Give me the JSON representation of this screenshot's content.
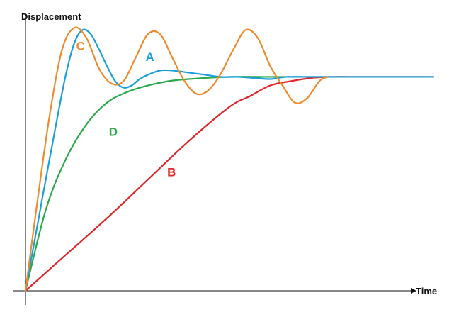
{
  "chart_data": {
    "type": "line",
    "title": "",
    "xlabel": "Time",
    "ylabel": "Displacement",
    "xlim": [
      0,
      100
    ],
    "ylim": [
      0,
      1.3
    ],
    "grid": false,
    "legend": "none",
    "reference_line": {
      "y": 1.0,
      "color": "#b4b4b4"
    },
    "series": [
      {
        "name": "A",
        "color": "#1a9fdb",
        "label_at": [
          30.5,
          1.09
        ],
        "points": [
          [
            0,
            0
          ],
          [
            4,
            0.42
          ],
          [
            8,
            0.83
          ],
          [
            10,
            1.02
          ],
          [
            12,
            1.16
          ],
          [
            14,
            1.22
          ],
          [
            16,
            1.2
          ],
          [
            18,
            1.13
          ],
          [
            20,
            1.05
          ],
          [
            22,
            0.98
          ],
          [
            24,
            0.95
          ],
          [
            26,
            0.96
          ],
          [
            28,
            0.99
          ],
          [
            30,
            1.01
          ],
          [
            33,
            1.03
          ],
          [
            36,
            1.03
          ],
          [
            40,
            1.02
          ],
          [
            44,
            1.01
          ],
          [
            48,
            1.0
          ],
          [
            52,
            1.0
          ],
          [
            56,
            0.995
          ],
          [
            60,
            0.99
          ],
          [
            64,
            1.0
          ],
          [
            70,
            1.0
          ],
          [
            80,
            1.0
          ],
          [
            90,
            1.0
          ],
          [
            100,
            1.0
          ]
        ]
      },
      {
        "name": "B",
        "color": "#e0262a",
        "label_at": [
          35.8,
          0.55
        ],
        "points": [
          [
            0,
            0
          ],
          [
            10,
            0.17
          ],
          [
            20,
            0.34
          ],
          [
            30,
            0.52
          ],
          [
            40,
            0.7
          ],
          [
            50,
            0.86
          ],
          [
            55,
            0.91
          ],
          [
            60,
            0.96
          ],
          [
            65,
            0.98
          ],
          [
            70,
            0.995
          ],
          [
            75,
            1.0
          ],
          [
            80,
            1.0
          ],
          [
            90,
            1.0
          ],
          [
            100,
            1.0
          ]
        ]
      },
      {
        "name": "C",
        "color": "#f08a2d",
        "label_at": [
          13.5,
          1.14
        ],
        "points": [
          [
            0,
            0
          ],
          [
            3,
            0.43
          ],
          [
            6,
            0.83
          ],
          [
            9,
            1.13
          ],
          [
            12,
            1.23
          ],
          [
            15,
            1.18
          ],
          [
            18,
            1.04
          ],
          [
            21,
            0.97
          ],
          [
            24,
            0.98
          ],
          [
            27,
            1.09
          ],
          [
            30,
            1.2
          ],
          [
            33,
            1.2
          ],
          [
            36,
            1.09
          ],
          [
            39,
            0.98
          ],
          [
            42,
            0.92
          ],
          [
            45,
            0.94
          ],
          [
            48,
            1.02
          ],
          [
            51,
            1.13
          ],
          [
            54,
            1.22
          ],
          [
            57,
            1.18
          ],
          [
            60,
            1.05
          ],
          [
            63,
            0.96
          ],
          [
            66,
            0.88
          ],
          [
            69,
            0.9
          ],
          [
            72,
            0.98
          ],
          [
            74,
            1.0
          ]
        ]
      },
      {
        "name": "D",
        "color": "#2aa84a",
        "label_at": [
          21.5,
          0.74
        ],
        "points": [
          [
            0,
            0
          ],
          [
            5,
            0.38
          ],
          [
            10,
            0.62
          ],
          [
            15,
            0.78
          ],
          [
            20,
            0.88
          ],
          [
            25,
            0.93
          ],
          [
            30,
            0.96
          ],
          [
            35,
            0.98
          ],
          [
            40,
            0.99
          ],
          [
            50,
            1.0
          ],
          [
            60,
            1.0
          ],
          [
            70,
            1.0
          ],
          [
            80,
            1.0
          ],
          [
            90,
            1.0
          ],
          [
            100,
            1.0
          ]
        ]
      }
    ]
  }
}
